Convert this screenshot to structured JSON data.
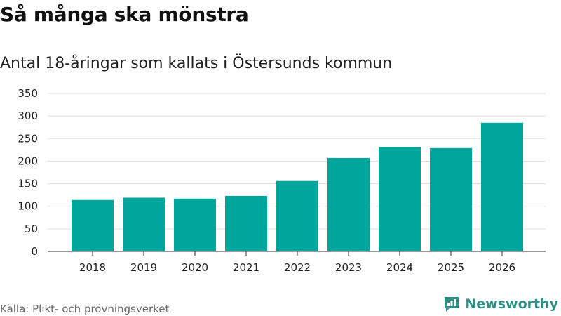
{
  "title": "Så många ska mönstra",
  "subtitle": "Antal 18-åringar som kallats i Östersunds kommun",
  "source": "Källa: Plikt- och prövningsverket",
  "brand": {
    "name": "Newsworthy",
    "logo_icon": "newsworthy-logo-icon",
    "color": "#2f8f86"
  },
  "colors": {
    "bar": "#00a59b",
    "grid": "#dddddd",
    "axis": "#333333"
  },
  "chart_data": {
    "type": "bar",
    "title": "Så många ska mönstra",
    "subtitle": "Antal 18-åringar som kallats i Östersunds kommun",
    "xlabel": "",
    "ylabel": "",
    "categories": [
      "2018",
      "2019",
      "2020",
      "2021",
      "2022",
      "2023",
      "2024",
      "2025",
      "2026"
    ],
    "values": [
      114,
      119,
      117,
      123,
      156,
      207,
      231,
      229,
      285
    ],
    "ylim": [
      0,
      350
    ],
    "yticks": [
      0,
      50,
      100,
      150,
      200,
      250,
      300,
      350
    ],
    "ytick_labels": [
      "0",
      "50",
      "100",
      "150",
      "200",
      "250",
      "300",
      "350"
    ],
    "grid": true,
    "legend": "none"
  }
}
